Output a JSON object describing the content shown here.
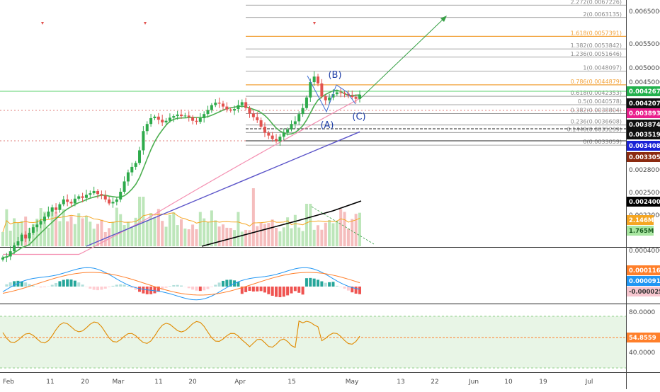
{
  "chart_data": {
    "type": "candlestick",
    "colors": {
      "up": "#2eaa4b",
      "down": "#e2524f",
      "ma_fast": "#4caf50",
      "ma_mid": "#f48fb1",
      "ma_slow": "#5c55c9",
      "ma_volume": "#000000",
      "macd_line": "#2196f3",
      "signal_line": "#ff7f2a",
      "rsi_line": "#e08a00",
      "rsi_band": "#e8f5e6",
      "fib_gold": "#f2a23a",
      "fib_gray": "#8a8a8a",
      "wave_label": "#1f3fa8",
      "arrow": "#37a046"
    },
    "x_axis": {
      "ticks": [
        "Feb",
        "11",
        "20",
        "Mar",
        "11",
        "20",
        "Apr",
        "15",
        "May",
        "13",
        "22",
        "Jun",
        "10",
        "19",
        "Jul"
      ]
    },
    "price_axis": {
      "ticks": [
        "0.0065000",
        "0.0055000",
        "0.0050000",
        "0.0045000",
        "0.0028000",
        "0.0025000",
        "0.0022000"
      ]
    },
    "fib_levels": [
      {
        "label": "2.272(0.0067226)",
        "price": 0.0067226,
        "gold": false
      },
      {
        "label": "2(0.0063135)",
        "price": 0.0063135,
        "gold": false
      },
      {
        "label": "1.618(0.0057391)",
        "price": 0.0057391,
        "gold": true
      },
      {
        "label": "1.382(0.0053842)",
        "price": 0.0053842,
        "gold": false
      },
      {
        "label": "1.236(0.0051646)",
        "price": 0.0051646,
        "gold": false
      },
      {
        "label": "1(0.0048097)",
        "price": 0.0048097,
        "gold": false
      },
      {
        "label": "0.786(0.0044879)",
        "price": 0.0044879,
        "gold": true
      },
      {
        "label": "0.618(0.0042353)",
        "price": 0.0042353,
        "gold": false
      },
      {
        "label": "0.5(0.0040578)",
        "price": 0.0040578,
        "gold": false
      },
      {
        "label": "0.382(0.0038804)",
        "price": 0.0038804,
        "gold": false
      },
      {
        "label": "0.236(0.0036608)",
        "price": 0.0036608,
        "gold": false
      },
      {
        "label": "0.1448(0.0035239)",
        "price": 0.0035239,
        "gold": false
      },
      {
        "label": "0(0.0033059)",
        "price": 0.0033059,
        "gold": false
      }
    ],
    "price_badges": [
      {
        "label": "0.0042676",
        "price": 0.0042676,
        "color": "#22b14c"
      },
      {
        "label": "0.0042071",
        "price": 0.0042071,
        "color": "#101010"
      },
      {
        "label": "0.0038938",
        "price": 0.0038938,
        "color": "#e91e8c"
      },
      {
        "label": "0.0038740",
        "price": 0.003874,
        "color": "#101010"
      },
      {
        "label": "0.0035192",
        "price": 0.0035192,
        "color": "#101010"
      },
      {
        "label": "0.0034085",
        "price": 0.0034085,
        "color": "#1a22d6"
      },
      {
        "label": "0.0033059",
        "price": 0.0033059,
        "color": "#8b2a10"
      },
      {
        "label": "0.0024004",
        "price": 0.0024004,
        "color": "#000000"
      }
    ],
    "volume_badges": [
      {
        "label": "2.146M",
        "color": "#f5a623"
      },
      {
        "label": "1.765M",
        "color": "#a8e6a1"
      }
    ],
    "wave_labels": [
      "(B)",
      "(A)",
      "(C)"
    ],
    "macd_panel": {
      "ticks": [
        "0.0004000"
      ],
      "badges": [
        {
          "label": "0.0001168",
          "color": "#ff7f2a"
        },
        {
          "label": "0.0000913",
          "color": "#2196f3"
        },
        {
          "label": "-0.0000255",
          "color": "#f7c6cf"
        }
      ]
    },
    "rsi_panel": {
      "ticks": [
        "80.0000",
        "40.0000"
      ],
      "badge": {
        "label": "54.8559",
        "color": "#ff7f2a"
      }
    },
    "series": [
      {
        "name": "price",
        "values": [
          0.00187,
          0.00188,
          0.00193,
          0.00199,
          0.00203,
          0.0021,
          0.00206,
          0.00212,
          0.00218,
          0.00221,
          0.00225,
          0.0023,
          0.00236,
          0.00241,
          0.00238,
          0.00245,
          0.00251,
          0.00248,
          0.00246,
          0.00252,
          0.00255,
          0.00253,
          0.00257,
          0.00259,
          0.00262,
          0.00258,
          0.00256,
          0.00251,
          0.00246,
          0.00248,
          0.00251,
          0.00261,
          0.00275,
          0.00288,
          0.00296,
          0.00302,
          0.00322,
          0.00355,
          0.00368,
          0.00379,
          0.00382,
          0.00376,
          0.00371,
          0.00374,
          0.0038,
          0.00383,
          0.00386,
          0.00383,
          0.00384,
          0.00381,
          0.00374,
          0.00372,
          0.00379,
          0.00387,
          0.00395,
          0.00405,
          0.0041,
          0.00408,
          0.00402,
          0.00396,
          0.00394,
          0.00397,
          0.00405,
          0.00411,
          0.00399,
          0.00388,
          0.00381,
          0.00375,
          0.00363,
          0.00352,
          0.00347,
          0.00341,
          0.00337,
          0.00345,
          0.00352,
          0.00358,
          0.00368,
          0.00373,
          0.00387,
          0.00399,
          0.00421,
          0.00455,
          0.00468,
          0.00452,
          0.00423,
          0.00415,
          0.00421,
          0.00428,
          0.00432,
          0.00431,
          0.00429,
          0.00425,
          0.00422,
          0.00418,
          0.00427
        ]
      }
    ]
  }
}
